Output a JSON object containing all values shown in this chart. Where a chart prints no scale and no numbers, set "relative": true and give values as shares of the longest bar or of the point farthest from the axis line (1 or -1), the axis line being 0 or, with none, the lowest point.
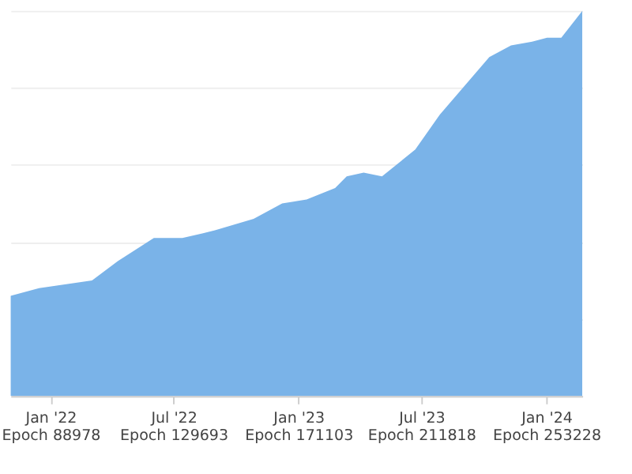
{
  "chart_data": {
    "type": "area",
    "relative": true,
    "grid": "y",
    "x": [
      "2021-11-03",
      "2021-12-15",
      "2022-03-03",
      "2022-04-10",
      "2022-06-02",
      "2022-07-14",
      "2022-08-31",
      "2022-10-27",
      "2022-12-08",
      "2023-01-13",
      "2023-02-24",
      "2023-03-13",
      "2023-04-07",
      "2023-05-04",
      "2023-06-22",
      "2023-07-28",
      "2023-10-09",
      "2023-11-10",
      "2023-12-11",
      "2024-01-02",
      "2024-01-23",
      "2024-02-23"
    ],
    "series": [
      {
        "color": "#7ab3e8",
        "values": [
          0.26,
          0.28,
          0.3,
          0.35,
          0.41,
          0.41,
          0.43,
          0.46,
          0.5,
          0.51,
          0.54,
          0.57,
          0.58,
          0.57,
          0.64,
          0.73,
          0.88,
          0.91,
          0.92,
          0.93,
          0.93,
          1.0
        ]
      }
    ],
    "xlim": [
      "2021-11-03",
      "2024-02-23"
    ],
    "xticks": [
      {
        "value": "2022-01-01",
        "label": "Jan '22\nEpoch 88978"
      },
      {
        "value": "2022-07-01",
        "label": "Jul '22\nEpoch 129693"
      },
      {
        "value": "2023-01-01",
        "label": "Jan '23\nEpoch 171103"
      },
      {
        "value": "2023-07-01",
        "label": "Jul '23\nEpoch 211818"
      },
      {
        "value": "2024-01-01",
        "label": "Jan '24\nEpoch 253228"
      }
    ]
  }
}
